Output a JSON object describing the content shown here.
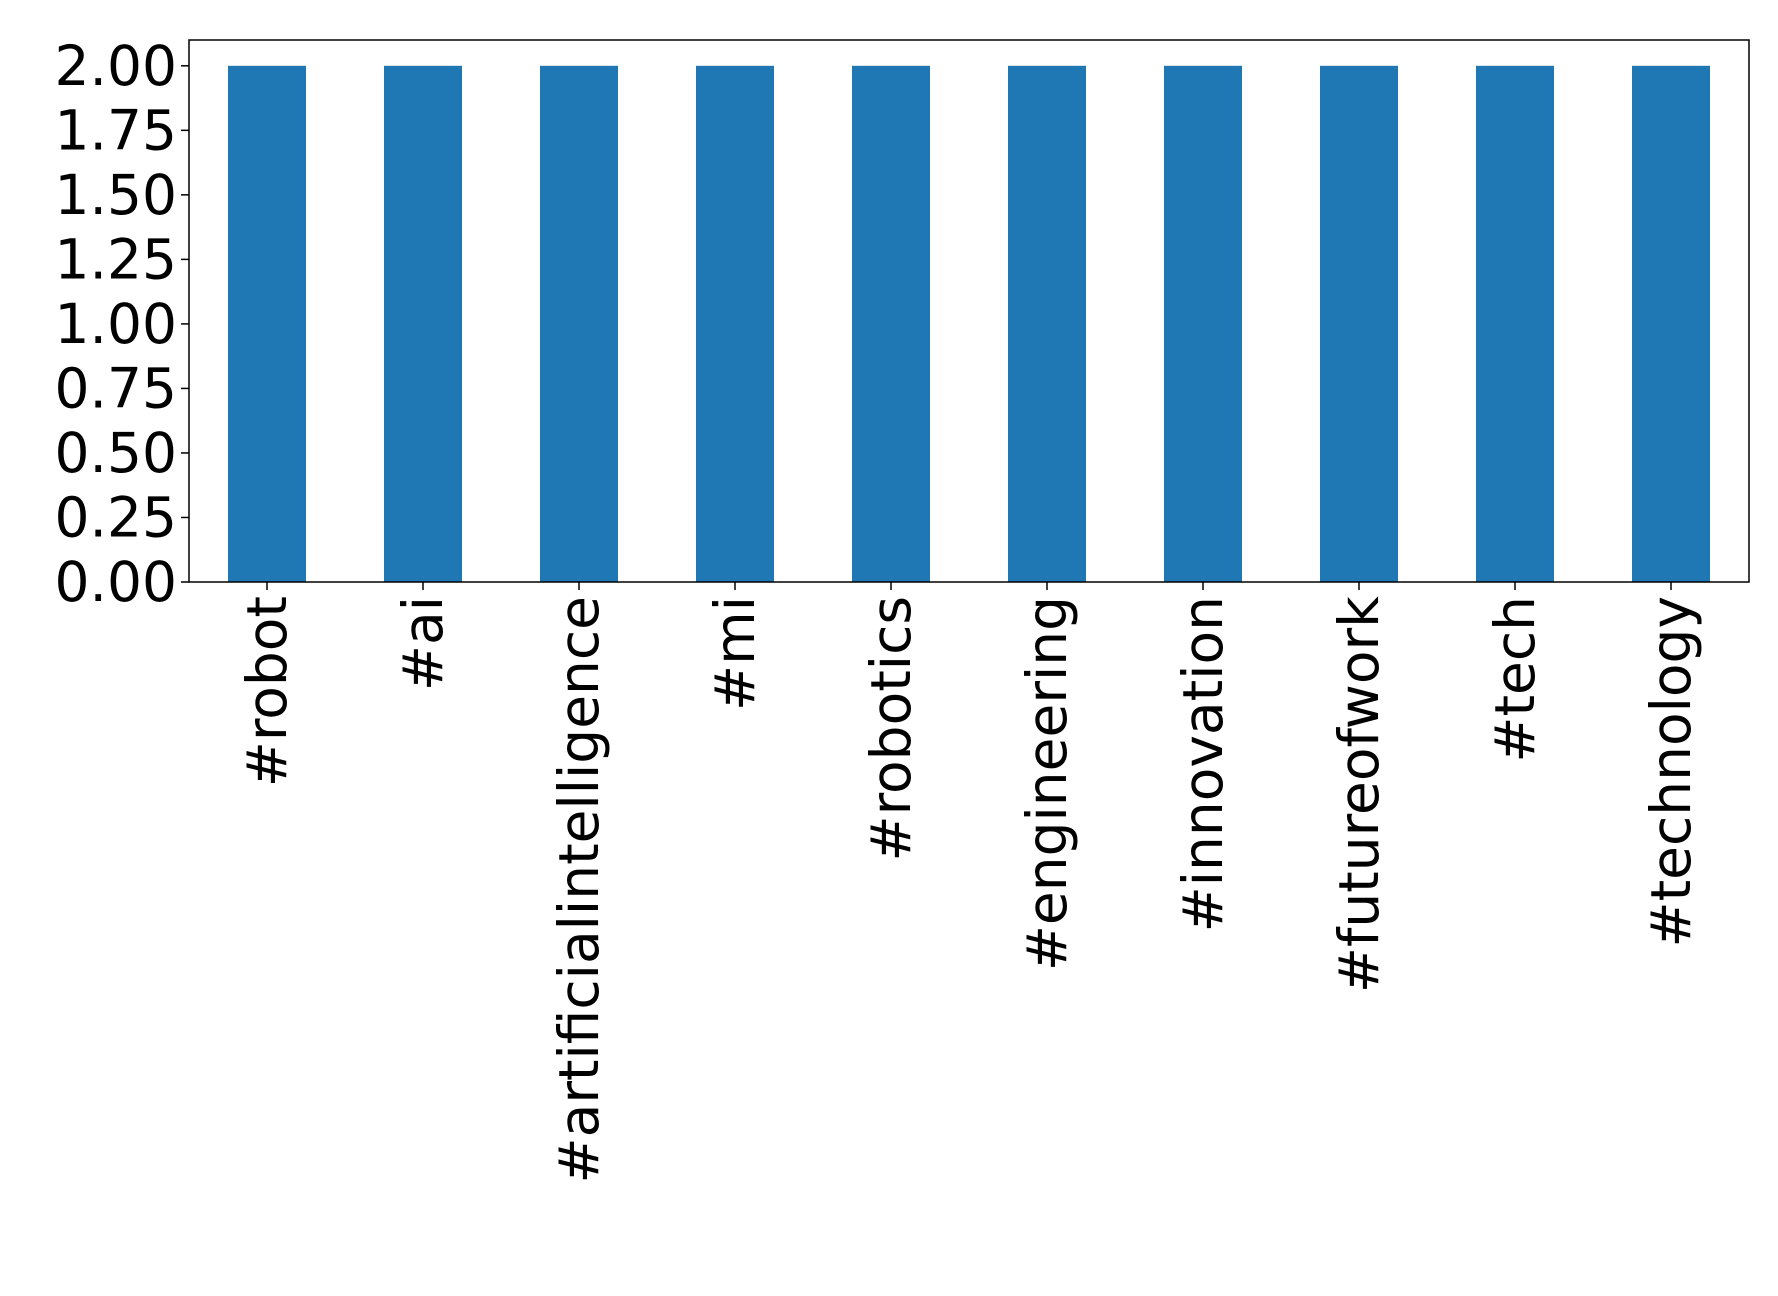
{
  "chart_data": {
    "type": "bar",
    "categories": [
      "#robot",
      "#ai",
      "#artificialintelligence",
      "#mi",
      "#robotics",
      "#engineering",
      "#innovation",
      "#futureofwork",
      "#tech",
      "#technology"
    ],
    "values": [
      2,
      2,
      2,
      2,
      2,
      2,
      2,
      2,
      2,
      2
    ],
    "color": "#1f77b4",
    "ylim": [
      0,
      2.1
    ],
    "yticks": [
      {
        "value": 0,
        "label": "0.00"
      },
      {
        "value": 0.25,
        "label": "0.25"
      },
      {
        "value": 0.5,
        "label": "0.50"
      },
      {
        "value": 0.75,
        "label": "0.75"
      },
      {
        "value": 1,
        "label": "1.00"
      },
      {
        "value": 1.25,
        "label": "1.25"
      },
      {
        "value": 1.5,
        "label": "1.50"
      },
      {
        "value": 1.75,
        "label": "1.75"
      },
      {
        "value": 2,
        "label": "2.00"
      }
    ],
    "grid": false
  }
}
